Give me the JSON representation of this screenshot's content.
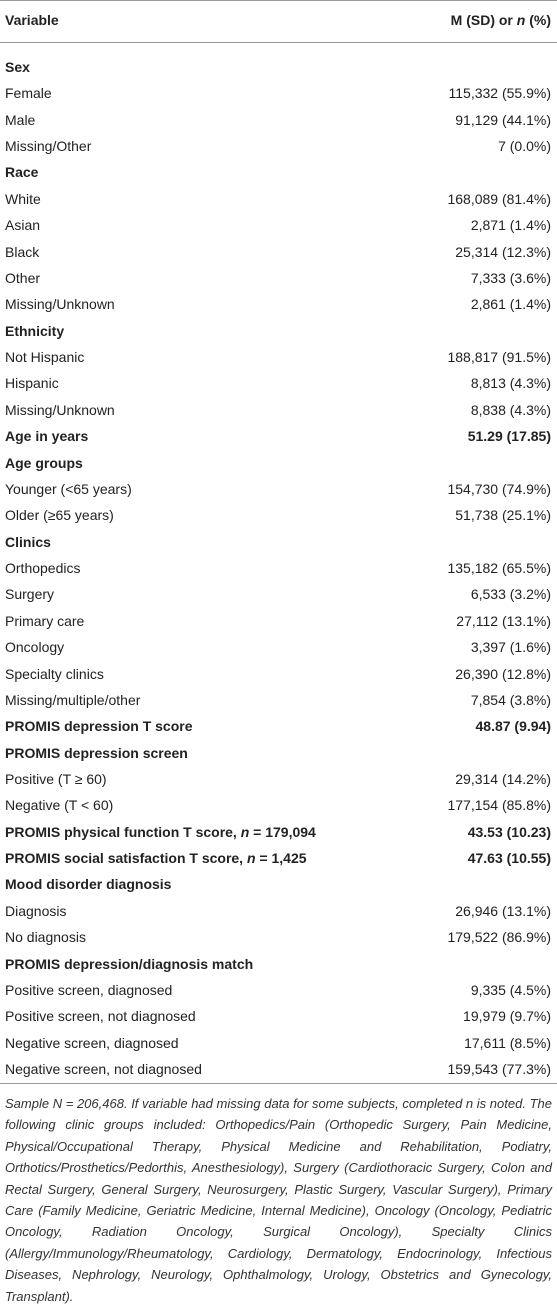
{
  "header": {
    "variable": "Variable",
    "value": [
      "M (SD) or ",
      "n",
      " (%)"
    ]
  },
  "rows": [
    {
      "label": "Sex",
      "heading": true
    },
    {
      "label": "Female",
      "value": "115,332 (55.9%)"
    },
    {
      "label": "Male",
      "value": "91,129 (44.1%)"
    },
    {
      "label": "Missing/Other",
      "value": "7 (0.0%)"
    },
    {
      "label": "Race",
      "heading": true
    },
    {
      "label": "White",
      "value": "168,089 (81.4%)"
    },
    {
      "label": "Asian",
      "value": "2,871 (1.4%)"
    },
    {
      "label": "Black",
      "value": "25,314 (12.3%)"
    },
    {
      "label": "Other",
      "value": "7,333 (3.6%)"
    },
    {
      "label": "Missing/Unknown",
      "value": "2,861 (1.4%)"
    },
    {
      "label": "Ethnicity",
      "heading": true
    },
    {
      "label": "Not Hispanic",
      "value": "188,817 (91.5%)"
    },
    {
      "label": "Hispanic",
      "value": "8,813 (4.3%)"
    },
    {
      "label": "Missing/Unknown",
      "value": "8,838 (4.3%)"
    },
    {
      "label": "Age in years",
      "value": "51.29 (17.85)",
      "heading": true
    },
    {
      "label": "Age groups",
      "heading": true
    },
    {
      "label": "Younger (<65 years)",
      "value": "154,730 (74.9%)"
    },
    {
      "label": "Older (≥65 years)",
      "value": "51,738 (25.1%)"
    },
    {
      "label": "Clinics",
      "heading": true
    },
    {
      "label": "Orthopedics",
      "value": "135,182 (65.5%)"
    },
    {
      "label": "Surgery",
      "value": "6,533 (3.2%)"
    },
    {
      "label": "Primary care",
      "value": "27,112 (13.1%)"
    },
    {
      "label": "Oncology",
      "value": "3,397 (1.6%)"
    },
    {
      "label": "Specialty clinics",
      "value": "26,390 (12.8%)"
    },
    {
      "label": "Missing/multiple/other",
      "value": "7,854 (3.8%)"
    },
    {
      "label": "PROMIS depression T score",
      "value": "48.87 (9.94)",
      "heading": true
    },
    {
      "label": "PROMIS depression screen",
      "heading": true
    },
    {
      "label": "Positive (T ≥ 60)",
      "value": "29,314 (14.2%)"
    },
    {
      "label": "Negative (T < 60)",
      "value": "177,154 (85.8%)"
    },
    {
      "label": [
        "PROMIS physical function T score, ",
        "n",
        " = 179,094"
      ],
      "value": "43.53 (10.23)",
      "heading": true
    },
    {
      "label": [
        "PROMIS social satisfaction T score, ",
        "n",
        " = 1,425"
      ],
      "value": "47.63 (10.55)",
      "heading": true
    },
    {
      "label": "Mood disorder diagnosis",
      "heading": true
    },
    {
      "label": "Diagnosis",
      "value": "26,946 (13.1%)"
    },
    {
      "label": "No diagnosis",
      "value": "179,522 (86.9%)"
    },
    {
      "label": "PROMIS depression/diagnosis match",
      "heading": true
    },
    {
      "label": "Positive screen, diagnosed",
      "value": "9,335 (4.5%)"
    },
    {
      "label": "Positive screen, not diagnosed",
      "value": "19,979 (9.7%)"
    },
    {
      "label": "Negative screen, diagnosed",
      "value": "17,611 (8.5%)"
    },
    {
      "label": "Negative screen, not diagnosed",
      "value": "159,543 (77.3%)"
    }
  ],
  "footnote": "Sample N = 206,468. If variable had missing data for some subjects, completed n is noted. The following clinic groups included: Orthopedics/Pain (Orthopedic Surgery, Pain Medicine, Physical/Occupational Therapy, Physical Medicine and Rehabilitation, Podiatry, Orthotics/Prosthetics/Pedorthis, Anesthesiology), Surgery (Cardiothoracic Surgery, Colon and Rectal Surgery, General Surgery, Neurosurgery, Plastic Surgery, Vascular Surgery), Primary Care (Family Medicine, Geriatric Medicine, Internal Medicine), Oncology (Oncology, Pediatric Oncology, Radiation Oncology, Surgical Oncology), Specialty Clinics (Allergy/Immunology/Rheumatology, Cardiology, Dermatology, Endocrinology, Infectious Diseases, Nephrology, Neurology, Ophthalmology, Urology, Obstetrics and Gynecology, Transplant)."
}
